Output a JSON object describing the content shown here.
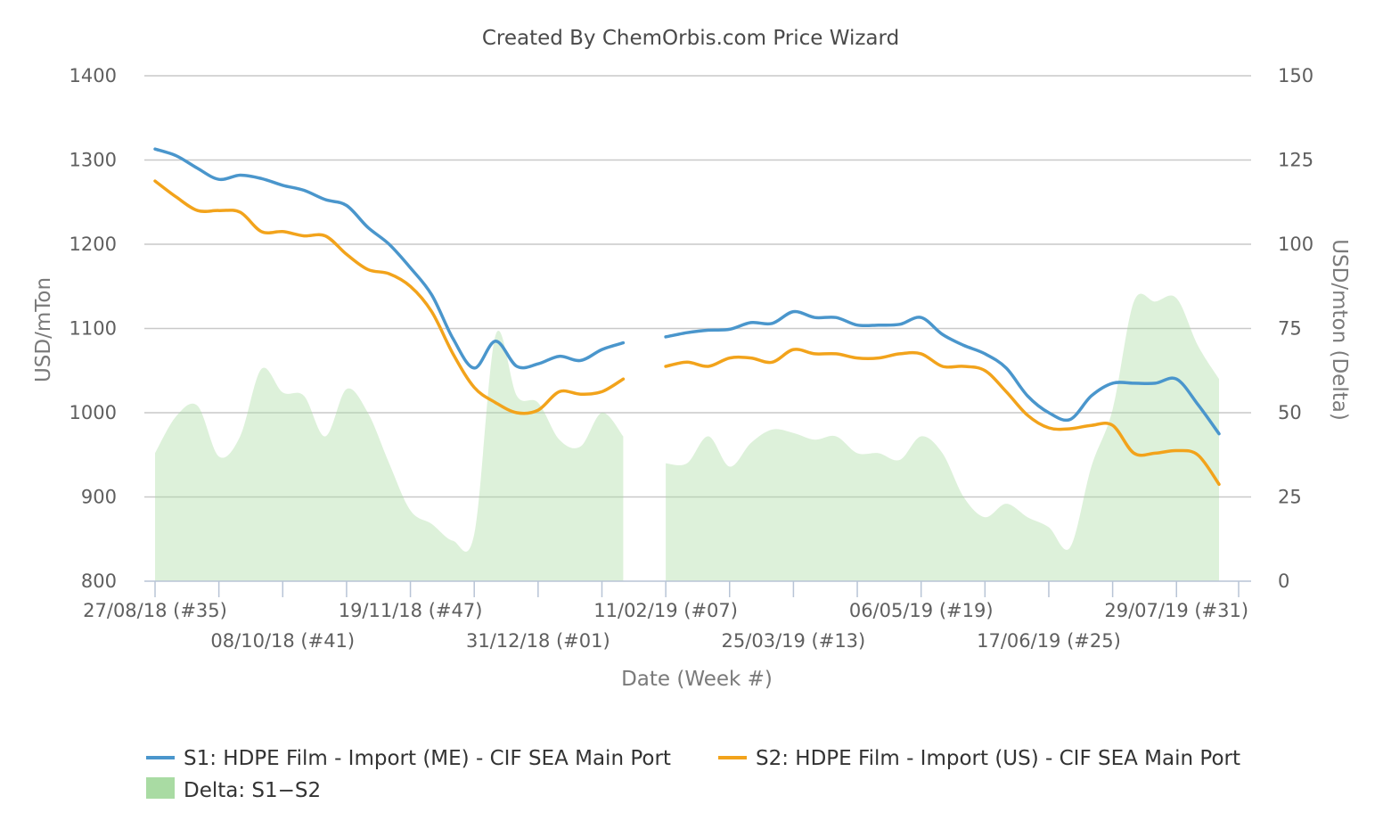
{
  "chart_data": {
    "type": "line",
    "title": "Created By ChemOrbis.com Price Wizard",
    "xlabel": "Date (Week #)",
    "ylabel": "USD/mTon",
    "y2label": "USD/mton (Delta)",
    "ylim": [
      800,
      1400
    ],
    "y2lim": [
      0,
      150
    ],
    "yticks": [
      800,
      900,
      1000,
      1100,
      1200,
      1300,
      1400
    ],
    "y2ticks": [
      0,
      25,
      50,
      75,
      100,
      125,
      150
    ],
    "grid": true,
    "legend_position": "bottom",
    "x_ticks_upper": [
      "27/08/18 (#35)",
      "19/11/18 (#47)",
      "11/02/19 (#07)",
      "06/05/19 (#19)",
      "29/07/19 (#31)"
    ],
    "x_ticks_lower": [
      "08/10/18 (#41)",
      "31/12/18 (#01)",
      "25/03/19 (#13)",
      "17/06/19 (#25)"
    ],
    "x": [
      "2018-08-27",
      "2018-09-03",
      "2018-09-10",
      "2018-09-17",
      "2018-09-24",
      "2018-10-01",
      "2018-10-08",
      "2018-10-15",
      "2018-10-22",
      "2018-10-29",
      "2018-11-05",
      "2018-11-12",
      "2018-11-19",
      "2018-11-26",
      "2018-12-03",
      "2018-12-10",
      "2018-12-17",
      "2018-12-24",
      "2018-12-31",
      "2019-01-07",
      "2019-01-14",
      "2019-01-21",
      "2019-01-28",
      "2019-02-04",
      "2019-02-11",
      "2019-02-18",
      "2019-02-25",
      "2019-03-04",
      "2019-03-11",
      "2019-03-18",
      "2019-03-25",
      "2019-04-01",
      "2019-04-08",
      "2019-04-15",
      "2019-04-22",
      "2019-04-29",
      "2019-05-06",
      "2019-05-13",
      "2019-05-20",
      "2019-05-27",
      "2019-06-03",
      "2019-06-10",
      "2019-06-17",
      "2019-06-24",
      "2019-07-01",
      "2019-07-08",
      "2019-07-15",
      "2019-07-22",
      "2019-07-29",
      "2019-08-05",
      "2019-08-12"
    ],
    "series": [
      {
        "name": "S1: HDPE Film - Import (ME) - CIF SEA Main Port",
        "axis": "left",
        "color": "#4a96cc",
        "values": [
          1313,
          1305,
          1290,
          1277,
          1282,
          1278,
          1270,
          1264,
          1253,
          1246,
          1220,
          1200,
          1172,
          1140,
          1088,
          1053,
          1085,
          1055,
          1058,
          1067,
          1062,
          1075,
          1083,
          null,
          1090,
          1095,
          1098,
          1099,
          1107,
          1106,
          1120,
          1113,
          1113,
          1104,
          1104,
          1105,
          1113,
          1093,
          1080,
          1070,
          1053,
          1020,
          1000,
          992,
          1020,
          1035,
          1035,
          1035,
          1040,
          1010,
          975
        ]
      },
      {
        "name": "S2: HDPE Film - Import (US) - CIF SEA Main Port",
        "axis": "left",
        "color": "#f2a31b",
        "values": [
          1275,
          1256,
          1240,
          1240,
          1238,
          1215,
          1215,
          1210,
          1210,
          1188,
          1170,
          1165,
          1150,
          1120,
          1070,
          1030,
          1012,
          1000,
          1003,
          1025,
          1022,
          1025,
          1040,
          null,
          1055,
          1060,
          1055,
          1065,
          1065,
          1060,
          1075,
          1070,
          1070,
          1065,
          1065,
          1070,
          1070,
          1055,
          1055,
          1050,
          1025,
          997,
          982,
          981,
          985,
          985,
          952,
          952,
          955,
          950,
          915
        ]
      }
    ],
    "area_series": {
      "name": "Delta: S1−S2",
      "axis": "right",
      "color": "#a9dba3",
      "values": [
        38,
        49,
        52,
        37,
        43,
        63,
        56,
        55,
        43,
        57,
        50,
        35,
        21,
        17,
        12,
        14,
        73,
        55,
        53,
        42,
        40,
        50,
        43,
        null,
        35,
        35,
        43,
        34,
        41,
        45,
        44,
        42,
        43,
        38,
        38,
        36,
        43,
        38,
        25,
        19,
        23,
        19,
        16,
        10,
        34,
        51,
        83,
        83,
        84,
        70,
        60
      ]
    },
    "legend": {
      "s1": "S1: HDPE Film - Import (ME) - CIF SEA Main Port",
      "s2": "S2: HDPE Film - Import (US) - CIF SEA Main Port",
      "delta": "Delta: S1−S2"
    }
  }
}
